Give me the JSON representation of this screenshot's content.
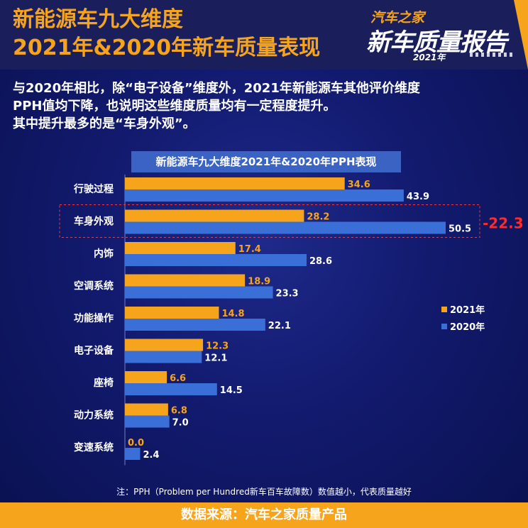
{
  "header": {
    "title_line1": "新能源车九大维度",
    "title_line2": "2021年&2020年新车质量表现",
    "logo_brand": "汽车之家",
    "logo_main": "新车质量报告",
    "logo_year": "2021年"
  },
  "description": {
    "line1": "与2020年相比，除“电子设备”维度外，2021年新能源车其他评价维度",
    "line2": "PPH值均下降，也说明这些维度质量均有一定程度提升。",
    "line3": "其中提升最多的是“车身外观”。"
  },
  "chart_data": {
    "type": "bar",
    "orientation": "horizontal",
    "title": "新能源车九大维度2021年&2020年PPH表现",
    "categories": [
      "行驶过程",
      "车身外观",
      "内饰",
      "空调系统",
      "功能操作",
      "电子设备",
      "座椅",
      "动力系统",
      "变速系统"
    ],
    "series": [
      {
        "name": "2021年",
        "values": [
          34.6,
          28.2,
          17.4,
          18.9,
          14.8,
          12.3,
          6.6,
          6.8,
          0.0
        ],
        "color": "#f7a41d",
        "label_color": "#f7a41d"
      },
      {
        "name": "2020年",
        "values": [
          43.9,
          50.5,
          28.6,
          23.3,
          22.1,
          12.1,
          14.5,
          7.0,
          2.4
        ],
        "color": "#3a6fd8",
        "label_color": "#ffffff"
      }
    ],
    "highlight": {
      "category": "车身外观",
      "annotation": "-22.3",
      "color": "#ff2a2a"
    },
    "legend_position": "right",
    "xlim": [
      0,
      50.5
    ],
    "grid": false
  },
  "note": "注：PPH（Problem per Hundred新车百车故障数）数值越小，代表质量越好",
  "footer": "数据来源：汽车之家质量产品"
}
